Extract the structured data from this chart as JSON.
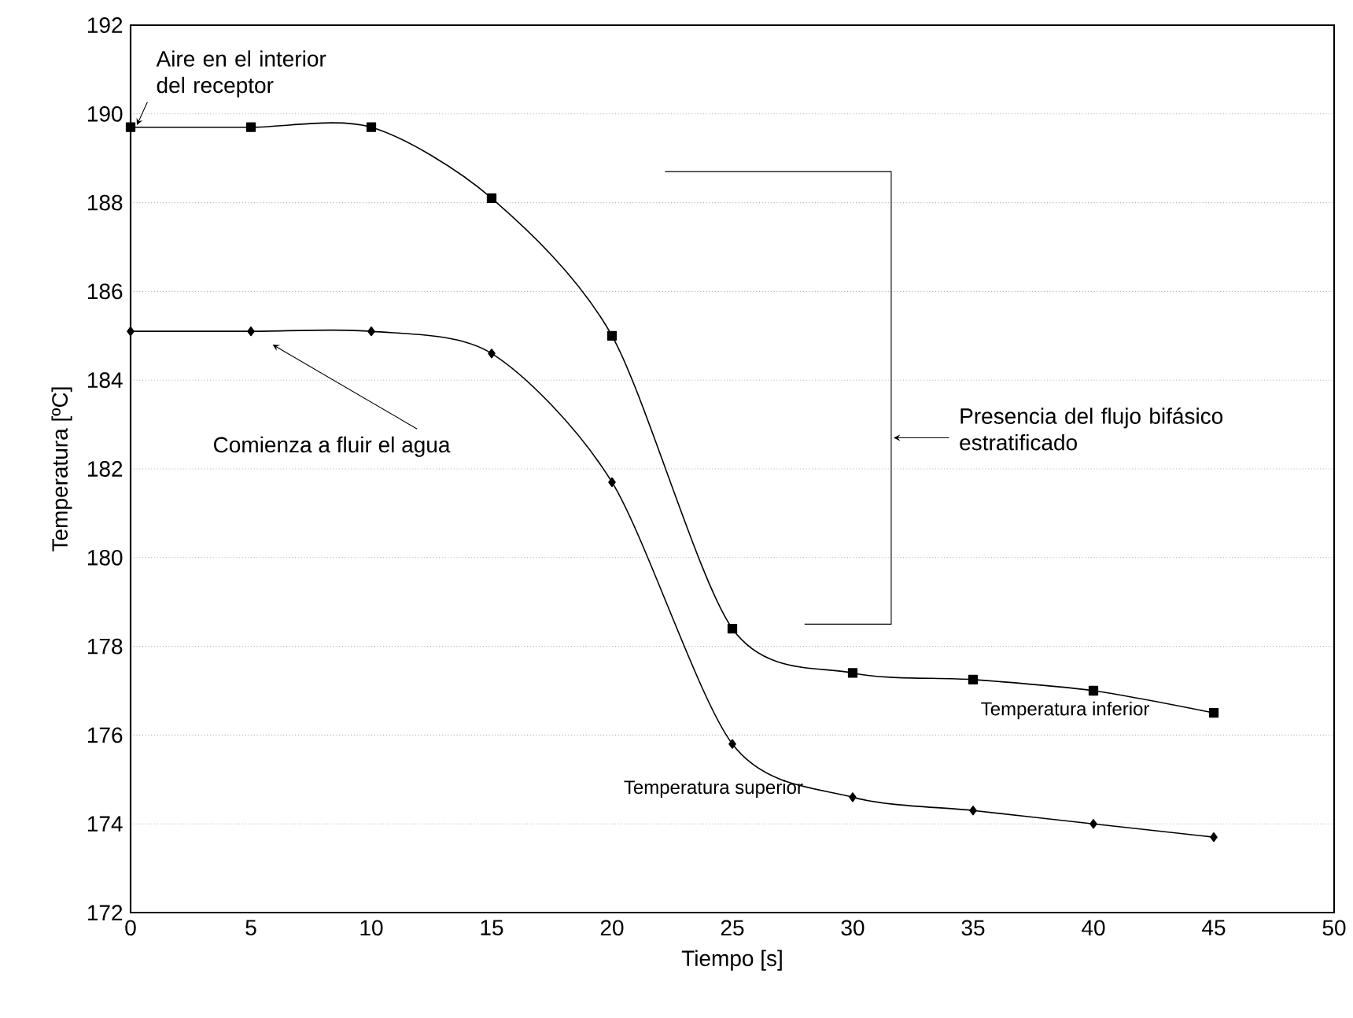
{
  "chart_data": {
    "type": "line",
    "xlabel": "Tiempo [s]",
    "ylabel": "Temperatura [ºC]",
    "x": [
      0,
      5,
      10,
      15,
      20,
      25,
      30,
      35,
      40,
      45
    ],
    "series": [
      {
        "name": "Temperatura inferior",
        "color": "#000000",
        "marker": "square",
        "values": [
          189.7,
          189.7,
          189.7,
          188.1,
          185.0,
          178.4,
          177.4,
          177.25,
          177.0,
          176.5
        ]
      },
      {
        "name": "Temperatura superior",
        "color": "#000000",
        "marker": "diamond",
        "values": [
          185.1,
          185.1,
          185.1,
          184.6,
          181.7,
          175.8,
          174.6,
          174.3,
          174.0,
          173.7
        ]
      }
    ],
    "xlim": [
      0,
      50
    ],
    "ylim": [
      172,
      192
    ],
    "xticks": [
      0,
      5,
      10,
      15,
      20,
      25,
      30,
      35,
      40,
      45,
      50
    ],
    "yticks": [
      172,
      174,
      176,
      178,
      180,
      182,
      184,
      186,
      188,
      190,
      192
    ],
    "grid": "y",
    "legend": false,
    "line_style": "solid",
    "annotations": [
      {
        "text": "Aire en el interior del receptor",
        "x": 0,
        "y": 189.7
      },
      "Comienza a fluir el agua",
      "Presencia del flujo bifásico estratificado"
    ]
  }
}
